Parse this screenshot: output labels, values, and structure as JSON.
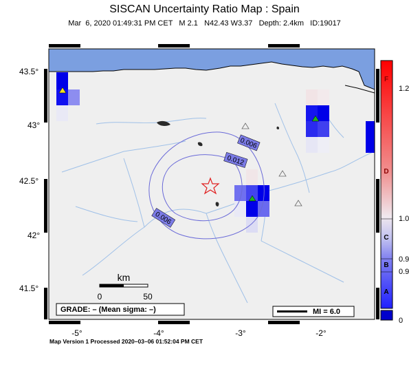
{
  "header": {
    "title": "SISCAN Uncertainty Ratio Map : Spain",
    "subtitle": "Mar  6, 2020 01:49:31 PM CET   M 2.1   N42.43 W3.37   Depth: 2.4km   ID:19017"
  },
  "map": {
    "lat_ticks": [
      "43.5°",
      "43°",
      "42.5°",
      "42°",
      "41.5°"
    ],
    "lon_ticks": [
      "-5°",
      "-4°",
      "-3°",
      "-2°"
    ],
    "contours": [
      {
        "label": "0.006"
      },
      {
        "label": "0.012"
      },
      {
        "label": "0.006"
      }
    ],
    "scale_bar": {
      "unit": "km",
      "start": "0",
      "end": "50"
    },
    "grade_text": "GRADE: – (Mean sigma: –)",
    "mi_legend": "MI = 6.0",
    "colors": {
      "sea": "#7b9fe0",
      "land": "#efefef",
      "river": "#9fc0e8",
      "contour": "#6a6ad8",
      "epicenter_star": "#e02020"
    }
  },
  "colorbar": {
    "letters": [
      "F",
      "D",
      "C",
      "B",
      "A"
    ],
    "values": [
      "1.2",
      "1.0",
      "0.9",
      "0.9",
      "0"
    ]
  },
  "footer": {
    "text": "Map Version 1 Processed 2020–03–06 01:52:04 PM CET"
  }
}
